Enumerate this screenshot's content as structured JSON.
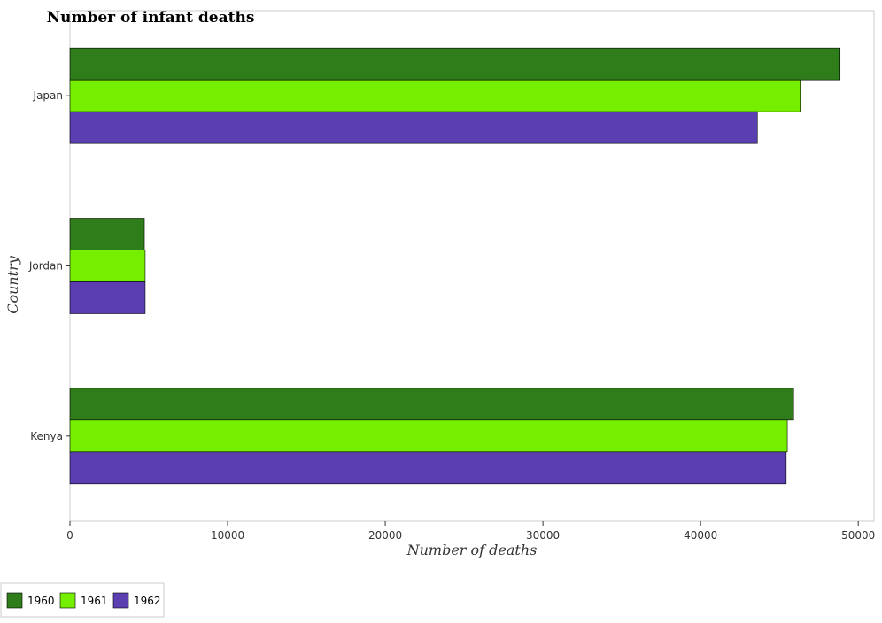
{
  "chart_data": {
    "type": "bar",
    "orientation": "horizontal",
    "title": "Number of infant deaths",
    "xlabel": "Number of deaths",
    "ylabel": "Country",
    "categories": [
      "Japan",
      "Jordan",
      "Kenya"
    ],
    "series": [
      {
        "name": "1960",
        "color": "#2e7d1a",
        "values": [
          48850,
          4720,
          45900
        ]
      },
      {
        "name": "1961",
        "color": "#76ee00",
        "values": [
          46320,
          4770,
          45500
        ]
      },
      {
        "name": "1962",
        "color": "#5b3fb1",
        "values": [
          43600,
          4770,
          45430
        ]
      }
    ],
    "xlim": [
      0,
      51000
    ],
    "xticks": [
      0,
      10000,
      20000,
      30000,
      40000,
      50000
    ],
    "xtick_labels": [
      "0",
      "10000",
      "20000",
      "30000",
      "40000",
      "50000"
    ],
    "grid": false,
    "legend_position": "bottom-left"
  }
}
